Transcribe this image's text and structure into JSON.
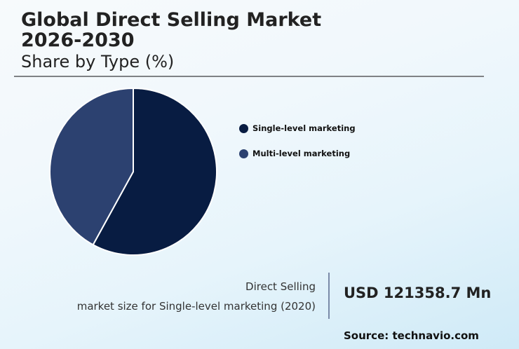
{
  "header": {
    "title_line1": "Global Direct Selling Market",
    "title_line2": "2026-2030",
    "subtitle": "Share by Type (%)"
  },
  "legend": {
    "items": [
      {
        "label": "Single-level marketing",
        "color": "#081c42"
      },
      {
        "label": "Multi-level marketing",
        "color": "#2c4170"
      }
    ]
  },
  "stat": {
    "label_line1": "Direct Selling",
    "label_line2": "market size for Single-level marketing (2020)",
    "value": "USD 121358.7 Mn"
  },
  "footer": {
    "source": "Source: technavio.com"
  },
  "chart_data": {
    "type": "pie",
    "title": "Global Direct Selling Market 2026-2030",
    "subtitle": "Share by Type (%)",
    "categories": [
      "Single-level marketing",
      "Multi-level marketing"
    ],
    "values": [
      58,
      42
    ],
    "colors": [
      "#081c42",
      "#2c4170"
    ],
    "start_angle_deg": 0,
    "direction": "clockwise",
    "legend_position": "right"
  }
}
